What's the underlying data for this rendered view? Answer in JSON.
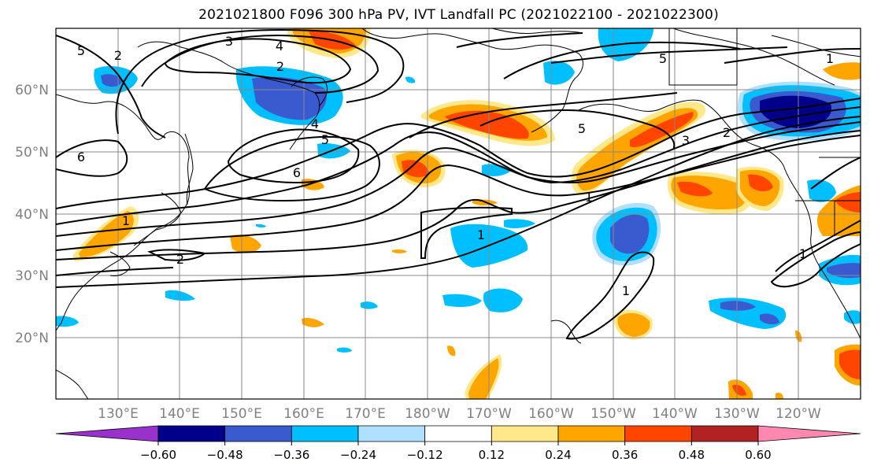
{
  "title": "2021021800 F096 300 hPa PV, IVT Landfall PC (2021022100 - 2021022300)",
  "lat_labels": [
    "60°N",
    "50°N",
    "40°N",
    "30°N",
    "20°N"
  ],
  "lon_labels": [
    "130°E",
    "140°E",
    "150°E",
    "160°E",
    "170°E",
    "180°W",
    "170°W",
    "160°W",
    "150°W",
    "140°W",
    "130°W",
    "120°W"
  ],
  "colorbar": {
    "colors": [
      "#9932cc",
      "#00008b",
      "#3a5bd0",
      "#00bfff",
      "#b0e0ff",
      "#ffffff",
      "#ffe88a",
      "#ffa500",
      "#ff4500",
      "#b22222",
      "#ff88b0"
    ],
    "tick_labels": [
      "-0.60",
      "-0.48",
      "-0.36",
      "-0.24",
      "-0.12",
      "0.12",
      "0.24",
      "0.36",
      "0.48",
      "0.60"
    ]
  },
  "contour_labels": [
    "5",
    "2",
    "3",
    "4",
    "2",
    "5",
    "4",
    "6",
    "5",
    "6",
    "2",
    "1",
    "1",
    "1",
    "5",
    "3",
    "2",
    "1",
    "1",
    "1"
  ]
}
